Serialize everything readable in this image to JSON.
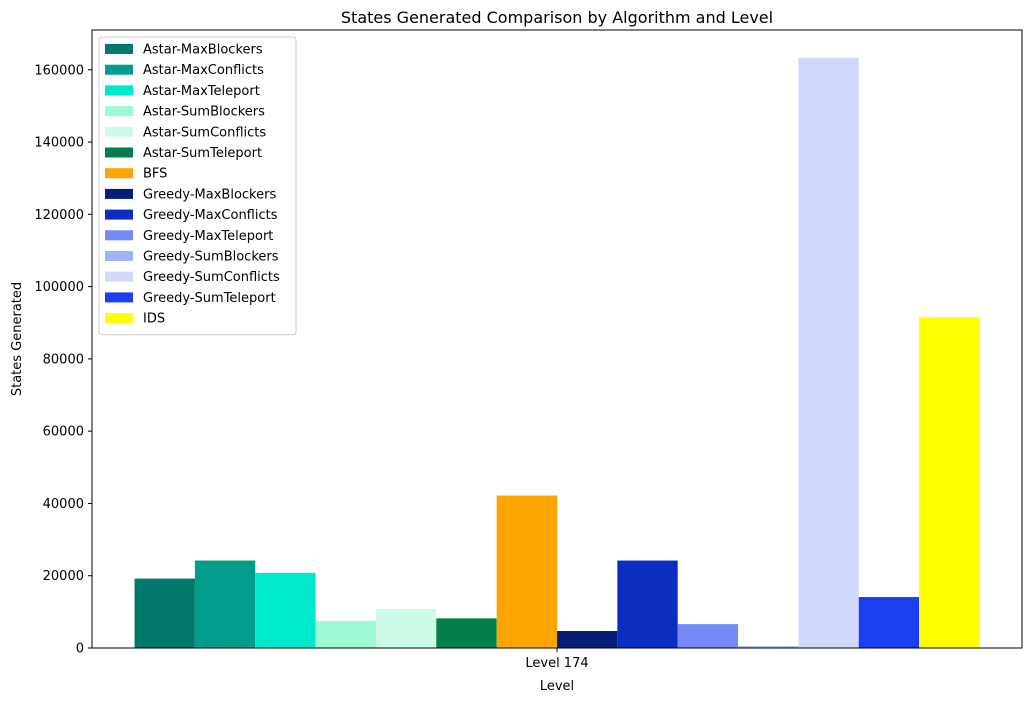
{
  "chart_data": {
    "type": "bar",
    "title": "States Generated Comparison by Algorithm and Level",
    "xlabel": "Level",
    "ylabel": "States Generated",
    "categories": [
      "Level 174"
    ],
    "ylim": [
      0,
      171000
    ],
    "yticks": [
      "0",
      "20000",
      "40000",
      "60000",
      "80000",
      "100000",
      "120000",
      "140000",
      "160000"
    ],
    "ytick_values": [
      0,
      20000,
      40000,
      60000,
      80000,
      100000,
      120000,
      140000,
      160000
    ],
    "grid": false,
    "legend_position": "top-left",
    "series": [
      {
        "name": "Astar-MaxBlockers",
        "color": "#00796b",
        "values": [
          19200
        ]
      },
      {
        "name": "Astar-MaxConflicts",
        "color": "#009e8a",
        "values": [
          24200
        ]
      },
      {
        "name": "Astar-MaxTeleport",
        "color": "#00e8cc",
        "values": [
          20800
        ]
      },
      {
        "name": "Astar-SumBlockers",
        "color": "#9efad4",
        "values": [
          7500
        ]
      },
      {
        "name": "Astar-SumConflicts",
        "color": "#ccfbe7",
        "values": [
          10800
        ]
      },
      {
        "name": "Astar-SumTeleport",
        "color": "#037e4d",
        "values": [
          8200
        ]
      },
      {
        "name": "BFS",
        "color": "#ffa500",
        "values": [
          42200
        ]
      },
      {
        "name": "Greedy-MaxBlockers",
        "color": "#051e78",
        "values": [
          4700
        ]
      },
      {
        "name": "Greedy-MaxConflicts",
        "color": "#0a2ebf",
        "values": [
          24200
        ]
      },
      {
        "name": "Greedy-MaxTeleport",
        "color": "#7389f5",
        "values": [
          6600
        ]
      },
      {
        "name": "Greedy-SumBlockers",
        "color": "#a2b2f7",
        "values": [
          500
        ]
      },
      {
        "name": "Greedy-SumConflicts",
        "color": "#d1d9fa",
        "values": [
          163300
        ]
      },
      {
        "name": "Greedy-SumTeleport",
        "color": "#1a3ff0",
        "values": [
          14100
        ]
      },
      {
        "name": "IDS",
        "color": "#ffff00",
        "values": [
          91500
        ]
      }
    ]
  }
}
